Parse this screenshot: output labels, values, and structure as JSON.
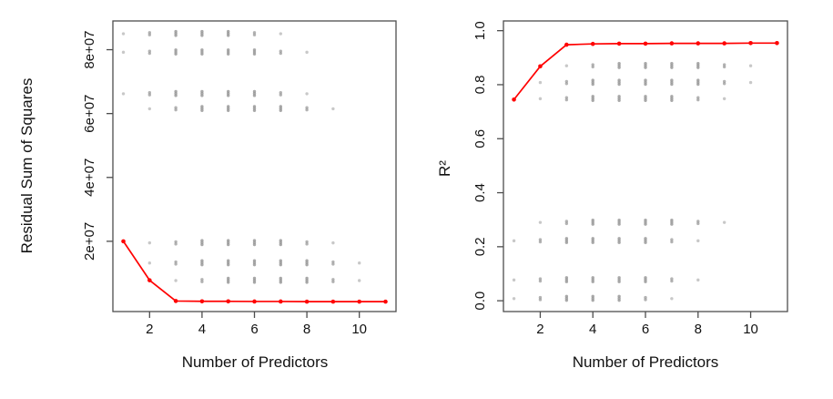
{
  "figure": {
    "background": "#ffffff",
    "accent_red": "#ff0000",
    "point_gray": "#9a9a9a",
    "axis_color": "#4d4d4d",
    "text_color": "#111111"
  },
  "chart_data": [
    {
      "type": "scatter",
      "panel": "left",
      "title": "",
      "xlabel": "Number of Predictors",
      "ylabel": "Residual Sum of Squares",
      "xlim": [
        0.6,
        11.4
      ],
      "ylim": [
        -2000000,
        89000000
      ],
      "x_ticks": [
        2,
        4,
        6,
        8,
        10
      ],
      "x_tick_labels": [
        "2",
        "4",
        "6",
        "8",
        "10"
      ],
      "y_ticks": [
        20000000,
        40000000,
        60000000,
        80000000
      ],
      "y_tick_labels": [
        "2e+07",
        "4e+07",
        "6e+07",
        "8e+07"
      ],
      "grid": false,
      "legend": "none",
      "best_line": {
        "name": "best-model-per-size",
        "color": "#ff0000",
        "x": [
          1,
          2,
          3,
          4,
          5,
          6,
          7,
          8,
          9,
          10,
          11
        ],
        "y": [
          20000000,
          7800000,
          1300000,
          1200000,
          1200000,
          1150000,
          1150000,
          1100000,
          1100000,
          1100000,
          1100000
        ]
      },
      "all_models_rows": [
        {
          "y": 85000000,
          "x": [
            1,
            2,
            3,
            4,
            5,
            6,
            7
          ]
        },
        {
          "y": 79200000,
          "x": [
            1,
            2,
            3,
            4,
            5,
            6,
            7,
            8
          ]
        },
        {
          "y": 66200000,
          "x": [
            1,
            2,
            3,
            4,
            5,
            6,
            7,
            8
          ]
        },
        {
          "y": 61500000,
          "x": [
            2,
            3,
            4,
            5,
            6,
            7,
            8,
            9
          ]
        },
        {
          "y": 19500000,
          "x": [
            2,
            3,
            4,
            5,
            6,
            7,
            8,
            9
          ]
        },
        {
          "y": 13200000,
          "x": [
            2,
            3,
            4,
            5,
            6,
            7,
            8,
            9,
            10
          ]
        },
        {
          "y": 7700000,
          "x": [
            3,
            4,
            5,
            6,
            7,
            8,
            9,
            10
          ]
        }
      ]
    },
    {
      "type": "scatter",
      "panel": "right",
      "title": "",
      "xlabel": "Number of Predictors",
      "ylabel": "R²",
      "xlim": [
        0.6,
        11.4
      ],
      "ylim": [
        -0.04,
        1.036
      ],
      "x_ticks": [
        2,
        4,
        6,
        8,
        10
      ],
      "x_tick_labels": [
        "2",
        "4",
        "6",
        "8",
        "10"
      ],
      "y_ticks": [
        0.0,
        0.2,
        0.4,
        0.6,
        0.8,
        1.0
      ],
      "y_tick_labels": [
        "0.0",
        "0.2",
        "0.4",
        "0.6",
        "0.8",
        "1.0"
      ],
      "grid": false,
      "legend": "none",
      "best_line": {
        "name": "best-model-per-size",
        "color": "#ff0000",
        "x": [
          1,
          2,
          3,
          4,
          5,
          6,
          7,
          8,
          9,
          10,
          11
        ],
        "y": [
          0.745,
          0.868,
          0.948,
          0.951,
          0.952,
          0.952,
          0.953,
          0.953,
          0.953,
          0.954,
          0.954
        ]
      },
      "all_models_rows": [
        {
          "y": 0.87,
          "x": [
            3,
            4,
            5,
            6,
            7,
            8,
            9,
            10
          ]
        },
        {
          "y": 0.808,
          "x": [
            2,
            3,
            4,
            5,
            6,
            7,
            8,
            9,
            10
          ]
        },
        {
          "y": 0.748,
          "x": [
            2,
            3,
            4,
            5,
            6,
            7,
            8,
            9
          ]
        },
        {
          "y": 0.29,
          "x": [
            2,
            3,
            4,
            5,
            6,
            7,
            8,
            9
          ]
        },
        {
          "y": 0.222,
          "x": [
            1,
            2,
            3,
            4,
            5,
            6,
            7,
            8
          ]
        },
        {
          "y": 0.077,
          "x": [
            1,
            2,
            3,
            4,
            5,
            6,
            7,
            8
          ]
        },
        {
          "y": 0.008,
          "x": [
            1,
            2,
            3,
            4,
            5,
            6,
            7
          ]
        }
      ]
    }
  ]
}
